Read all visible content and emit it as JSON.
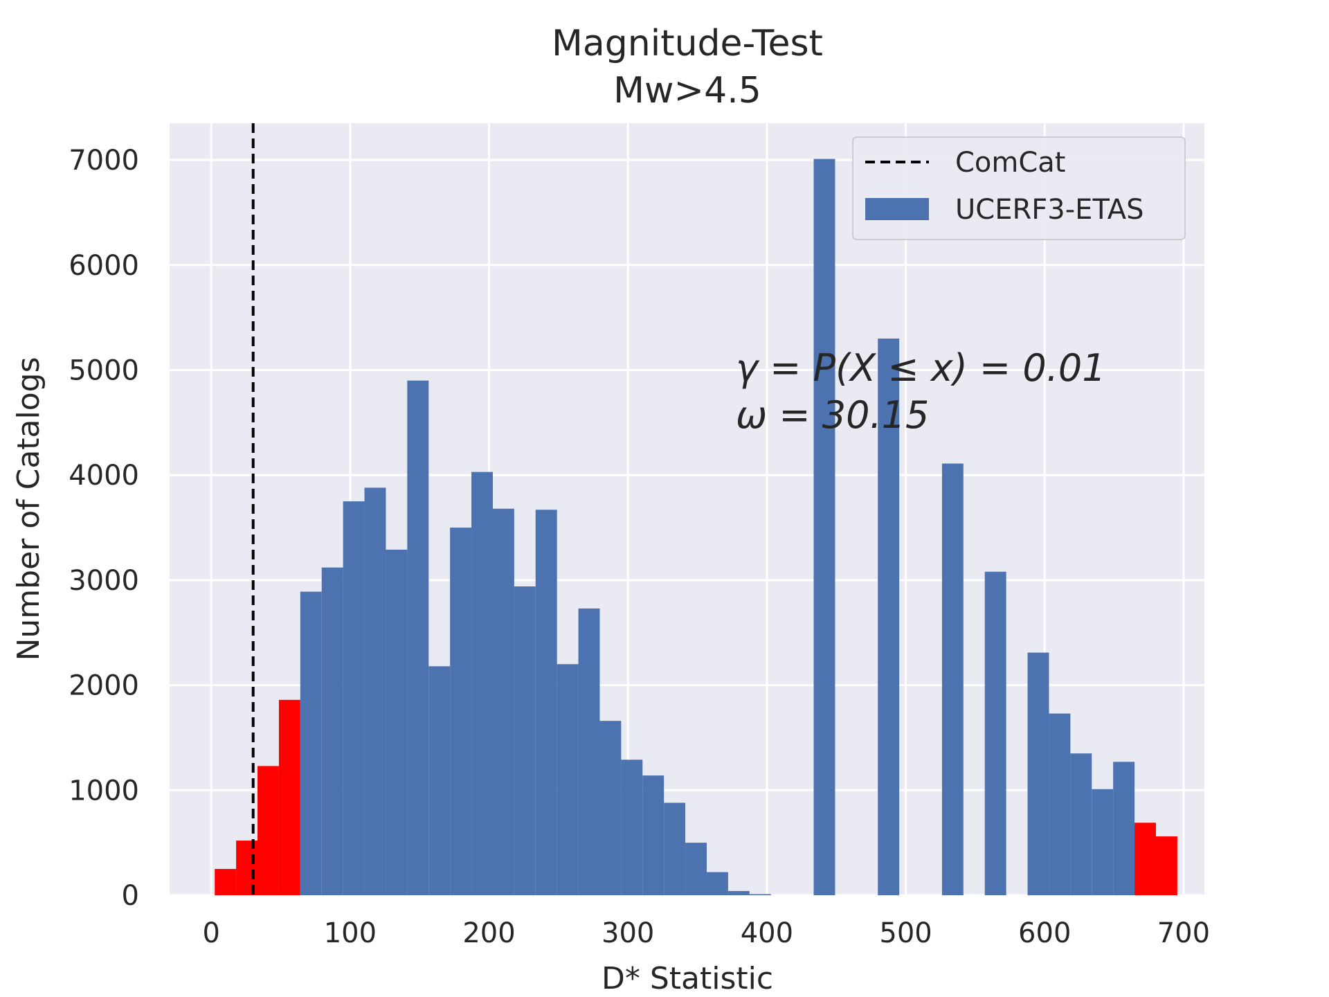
{
  "chart_data": {
    "type": "bar",
    "title": "Magnitude-Test",
    "subtitle": "Mw>4.5",
    "xlabel": "D* Statistic",
    "ylabel": "Number of Catalogs",
    "xlim": [
      -30,
      715
    ],
    "ylim": [
      0,
      7350
    ],
    "xticks": [
      0,
      100,
      200,
      300,
      400,
      500,
      600,
      700
    ],
    "yticks": [
      0,
      1000,
      2000,
      3000,
      4000,
      5000,
      6000,
      7000
    ],
    "grid": true,
    "legend_position": "top-right",
    "bin_width": 15.4,
    "bins": [
      {
        "x": 2.5,
        "count": 250,
        "tail": true
      },
      {
        "x": 17.9,
        "count": 520,
        "tail": true
      },
      {
        "x": 33.3,
        "count": 1230,
        "tail": true
      },
      {
        "x": 48.7,
        "count": 1860,
        "tail": true
      },
      {
        "x": 64.1,
        "count": 2890,
        "tail": false
      },
      {
        "x": 79.5,
        "count": 3120,
        "tail": false
      },
      {
        "x": 94.9,
        "count": 3750,
        "tail": false
      },
      {
        "x": 110.3,
        "count": 3880,
        "tail": false
      },
      {
        "x": 125.7,
        "count": 3290,
        "tail": false
      },
      {
        "x": 141.1,
        "count": 4900,
        "tail": false
      },
      {
        "x": 156.5,
        "count": 2180,
        "tail": false
      },
      {
        "x": 171.9,
        "count": 3500,
        "tail": false
      },
      {
        "x": 187.3,
        "count": 4030,
        "tail": false
      },
      {
        "x": 202.7,
        "count": 3680,
        "tail": false
      },
      {
        "x": 218.1,
        "count": 2940,
        "tail": false
      },
      {
        "x": 233.5,
        "count": 3670,
        "tail": false
      },
      {
        "x": 248.9,
        "count": 2200,
        "tail": false
      },
      {
        "x": 264.3,
        "count": 2730,
        "tail": false
      },
      {
        "x": 279.7,
        "count": 1660,
        "tail": false
      },
      {
        "x": 295.1,
        "count": 1290,
        "tail": false
      },
      {
        "x": 310.5,
        "count": 1140,
        "tail": false
      },
      {
        "x": 325.9,
        "count": 880,
        "tail": false
      },
      {
        "x": 341.3,
        "count": 500,
        "tail": false
      },
      {
        "x": 356.7,
        "count": 220,
        "tail": false
      },
      {
        "x": 372.1,
        "count": 40,
        "tail": false
      },
      {
        "x": 387.5,
        "count": 10,
        "tail": false
      },
      {
        "x": 433.7,
        "count": 7010,
        "tail": false
      },
      {
        "x": 479.9,
        "count": 5300,
        "tail": false
      },
      {
        "x": 526.1,
        "count": 4110,
        "tail": false
      },
      {
        "x": 556.9,
        "count": 3080,
        "tail": false
      },
      {
        "x": 587.7,
        "count": 2310,
        "tail": false
      },
      {
        "x": 603.1,
        "count": 1730,
        "tail": false
      },
      {
        "x": 618.5,
        "count": 1350,
        "tail": false
      },
      {
        "x": 633.9,
        "count": 1010,
        "tail": false
      },
      {
        "x": 649.3,
        "count": 1270,
        "tail": false
      },
      {
        "x": 664.7,
        "count": 690,
        "tail": true
      },
      {
        "x": 680.1,
        "count": 560,
        "tail": true
      }
    ],
    "observed": {
      "name": "ComCat",
      "x": 30.15
    },
    "series": [
      {
        "name": "UCERF3-ETAS"
      }
    ],
    "annotation": {
      "line1": "γ = P(X ≤ x) = 0.01",
      "line2": "ω = 30.15"
    },
    "colors": {
      "bars": "#4c72b0",
      "tail": "#ff0000",
      "observed_line": "#000000",
      "plot_bg": "#eaeaf2",
      "grid": "#ffffff"
    }
  }
}
